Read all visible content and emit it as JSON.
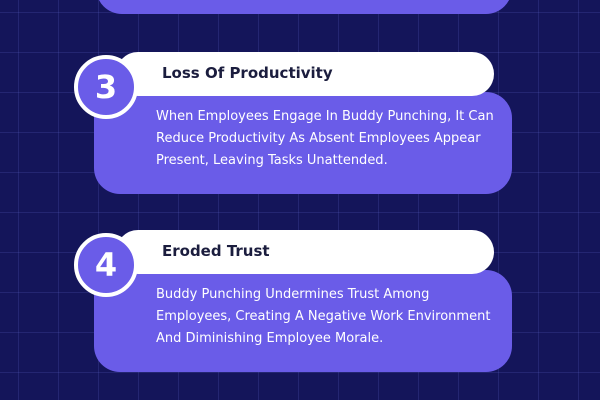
{
  "items": [
    {
      "number": "3",
      "title": "Loss Of Productivity",
      "description": "When Employees Engage In Buddy Punching, It Can Reduce Productivity As Absent Employees Appear Present, Leaving Tasks Unattended."
    },
    {
      "number": "4",
      "title": "Eroded Trust",
      "description": "Buddy Punching Undermines Trust Among Employees, Creating A Negative Work Environment And Diminishing Employee Morale."
    }
  ],
  "colors": {
    "background": "#14155a",
    "card": "#6a5ce8",
    "title_bg": "#ffffff",
    "title_text": "#1b1d3e"
  }
}
